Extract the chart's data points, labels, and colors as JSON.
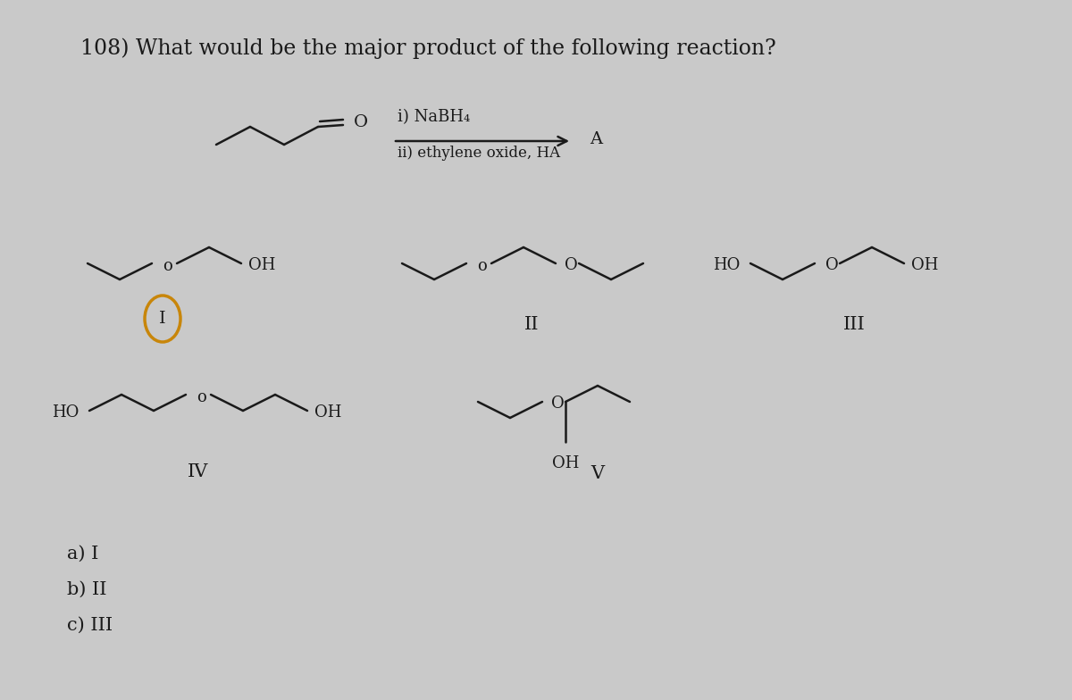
{
  "background_color": "#c9c9c9",
  "text_color": "#1a1a1a",
  "title": "108) What would be the major product of the following reaction?",
  "reaction_line1": "i) NaBH₄",
  "reaction_line2": "ii) ethylene oxide, HA",
  "product_label": "A",
  "choice_a": "a) I",
  "choice_b": "b) II",
  "choice_c": "c) III",
  "circle_color": "#c8860a",
  "title_fontsize": 17,
  "struct_fontsize": 13,
  "label_fontsize": 15
}
